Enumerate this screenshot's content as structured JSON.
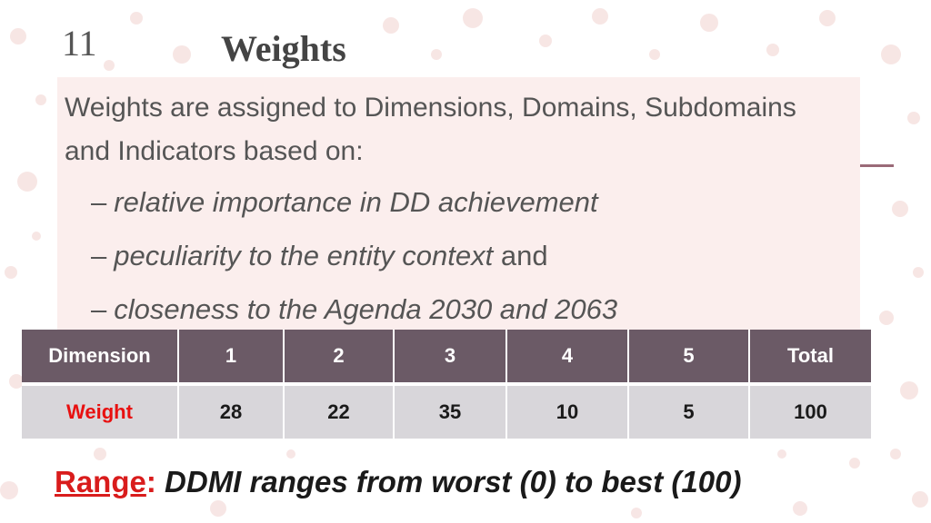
{
  "slide": {
    "number": "11",
    "title": "Weights"
  },
  "intro": "Weights are assigned to Dimensions, Domains, Subdomains and Indicators based on:",
  "bullets": [
    {
      "dash": "–",
      "italic": "relative importance in DD achievement",
      "plain": ""
    },
    {
      "dash": "–",
      "italic": "peculiarity to the entity context",
      "plain": " and"
    },
    {
      "dash": "–",
      "italic": "closeness to the Agenda 2030 and 2063",
      "plain": ""
    }
  ],
  "table": {
    "header": [
      "Dimension",
      "1",
      "2",
      "3",
      "4",
      "5",
      "Total"
    ],
    "row": [
      "Weight",
      "28",
      "22",
      "35",
      "10",
      "5",
      "100"
    ]
  },
  "range": {
    "label": "Range",
    "colon": ":",
    "text": " DDMI ranges from worst (0) to best (100)"
  },
  "colors": {
    "header_bg": "#6b5a66",
    "row_bg": "#d8d6da",
    "accent_red": "#e81010",
    "content_bg": "#fbedec"
  }
}
